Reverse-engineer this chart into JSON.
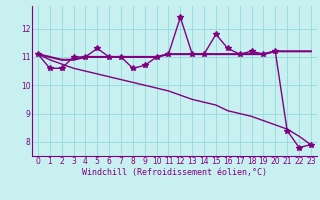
{
  "x": [
    0,
    1,
    2,
    3,
    4,
    5,
    6,
    7,
    8,
    9,
    10,
    11,
    12,
    13,
    14,
    15,
    16,
    17,
    18,
    19,
    20,
    21,
    22,
    23
  ],
  "windchill": [
    11.1,
    10.6,
    10.6,
    11.0,
    11.0,
    11.3,
    11.0,
    11.0,
    10.6,
    10.7,
    11.0,
    11.1,
    12.4,
    11.1,
    11.1,
    11.8,
    11.3,
    11.1,
    11.2,
    11.1,
    11.2,
    8.4,
    7.8,
    7.9
  ],
  "temp": [
    11.1,
    11.0,
    10.9,
    10.9,
    11.0,
    11.0,
    11.0,
    11.0,
    11.0,
    11.0,
    11.0,
    11.1,
    11.1,
    11.1,
    11.1,
    11.1,
    11.1,
    11.1,
    11.1,
    11.1,
    11.2,
    11.2,
    11.2,
    11.2
  ],
  "trend": [
    11.1,
    10.9,
    10.75,
    10.6,
    10.5,
    10.4,
    10.3,
    10.2,
    10.1,
    10.0,
    9.9,
    9.8,
    9.65,
    9.5,
    9.4,
    9.3,
    9.1,
    9.0,
    8.9,
    8.75,
    8.6,
    8.45,
    8.2,
    7.9
  ],
  "line_color": "#800080",
  "bg_color": "#c8f0f0",
  "grid_color": "#99dddd",
  "xlabel": "Windchill (Refroidissement éolien,°C)",
  "xlim_min": -0.5,
  "xlim_max": 23.5,
  "ylim_min": 7.5,
  "ylim_max": 12.8,
  "yticks": [
    8,
    9,
    10,
    11,
    12
  ],
  "xticks": [
    0,
    1,
    2,
    3,
    4,
    5,
    6,
    7,
    8,
    9,
    10,
    11,
    12,
    13,
    14,
    15,
    16,
    17,
    18,
    19,
    20,
    21,
    22,
    23
  ],
  "marker": "*",
  "marker_size": 4,
  "linewidth": 1.0,
  "tick_fontsize": 5.5,
  "xlabel_fontsize": 6.0
}
